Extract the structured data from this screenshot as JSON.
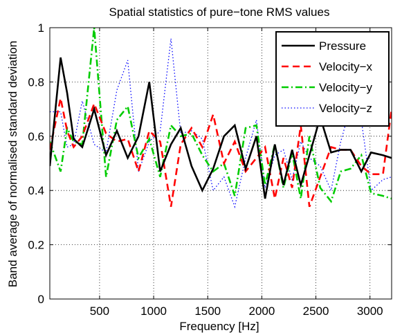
{
  "chart_data": {
    "type": "line",
    "title": "Spatial statistics of pure−tone RMS values",
    "xlabel": "Frequency [Hz]",
    "ylabel": "Band average of normalised standard deviation",
    "xlim": [
      40,
      3200
    ],
    "ylim": [
      0,
      1
    ],
    "xticks": [
      500,
      1000,
      1500,
      2000,
      2500,
      3000
    ],
    "xtick_labels": [
      "500",
      "1000",
      "1500",
      "2000",
      "2500",
      "3000"
    ],
    "yticks": [
      0,
      0.2,
      0.4,
      0.6,
      0.8,
      1
    ],
    "ytick_labels": [
      "0",
      "0.2",
      "0.4",
      "0.6",
      "0.8",
      "1"
    ],
    "grid": true,
    "legend_position": "top-right",
    "series": [
      {
        "name": "Pressure",
        "color": "#000000",
        "style": "solid",
        "x": [
          40,
          140,
          200,
          260,
          340,
          450,
          560,
          660,
          760,
          860,
          960,
          1060,
          1160,
          1250,
          1350,
          1450,
          1550,
          1650,
          1750,
          1850,
          1950,
          2030,
          2120,
          2200,
          2280,
          2360,
          2440,
          2540,
          2640,
          2730,
          2820,
          2920,
          3010,
          3120,
          3200
        ],
        "y": [
          0.49,
          0.89,
          0.76,
          0.59,
          0.56,
          0.7,
          0.53,
          0.62,
          0.52,
          0.6,
          0.8,
          0.47,
          0.57,
          0.63,
          0.49,
          0.4,
          0.48,
          0.6,
          0.64,
          0.48,
          0.6,
          0.37,
          0.57,
          0.42,
          0.55,
          0.42,
          0.53,
          0.67,
          0.54,
          0.55,
          0.55,
          0.47,
          0.54,
          0.53,
          0.52
        ]
      },
      {
        "name": "Velocity−x",
        "color": "#ff0000",
        "style": "dashed",
        "x": [
          40,
          140,
          200,
          260,
          340,
          450,
          560,
          660,
          760,
          860,
          960,
          1060,
          1160,
          1250,
          1350,
          1450,
          1550,
          1650,
          1750,
          1850,
          1950,
          2030,
          2120,
          2200,
          2280,
          2360,
          2440,
          2540,
          2640,
          2730,
          2820,
          2920,
          3010,
          3120,
          3200
        ],
        "y": [
          0.55,
          0.74,
          0.62,
          0.56,
          0.6,
          0.72,
          0.61,
          0.58,
          0.59,
          0.47,
          0.62,
          0.58,
          0.34,
          0.57,
          0.63,
          0.56,
          0.68,
          0.5,
          0.58,
          0.47,
          0.52,
          0.56,
          0.37,
          0.52,
          0.41,
          0.64,
          0.34,
          0.45,
          0.56,
          0.55,
          0.55,
          0.49,
          0.46,
          0.46,
          0.7
        ]
      },
      {
        "name": "Velocity−y",
        "color": "#00cc00",
        "style": "dashdot",
        "x": [
          40,
          140,
          200,
          260,
          340,
          450,
          560,
          660,
          760,
          860,
          960,
          1060,
          1160,
          1250,
          1350,
          1450,
          1550,
          1650,
          1750,
          1850,
          1950,
          2030,
          2120,
          2200,
          2280,
          2360,
          2440,
          2540,
          2640,
          2730,
          2820,
          2920,
          3010,
          3120,
          3200
        ],
        "y": [
          0.58,
          0.47,
          0.63,
          0.58,
          0.57,
          1.0,
          0.45,
          0.66,
          0.71,
          0.52,
          0.59,
          0.45,
          0.64,
          0.6,
          0.61,
          0.53,
          0.47,
          0.5,
          0.38,
          0.63,
          0.64,
          0.42,
          0.57,
          0.41,
          0.54,
          0.37,
          0.6,
          0.41,
          0.36,
          0.47,
          0.48,
          0.53,
          0.39,
          0.38,
          0.37
        ]
      },
      {
        "name": "Velocity−z",
        "color": "#0000ff",
        "style": "dotted",
        "x": [
          40,
          140,
          200,
          260,
          340,
          450,
          560,
          660,
          760,
          860,
          960,
          1060,
          1160,
          1250,
          1350,
          1450,
          1550,
          1650,
          1750,
          1850,
          1950,
          2030,
          2120,
          2200,
          2280,
          2360,
          2440,
          2540,
          2640,
          2730,
          2820,
          2920,
          3010,
          3120,
          3200
        ],
        "y": [
          0.69,
          0.69,
          0.56,
          0.57,
          0.73,
          0.57,
          0.54,
          0.77,
          0.88,
          0.47,
          0.58,
          0.62,
          0.96,
          0.61,
          0.62,
          0.59,
          0.4,
          0.45,
          0.34,
          0.52,
          0.66,
          0.41,
          0.53,
          0.55,
          0.44,
          0.58,
          0.52,
          0.49,
          0.4,
          0.58,
          0.71,
          0.66,
          0.4,
          0.44,
          0.45
        ]
      }
    ]
  }
}
